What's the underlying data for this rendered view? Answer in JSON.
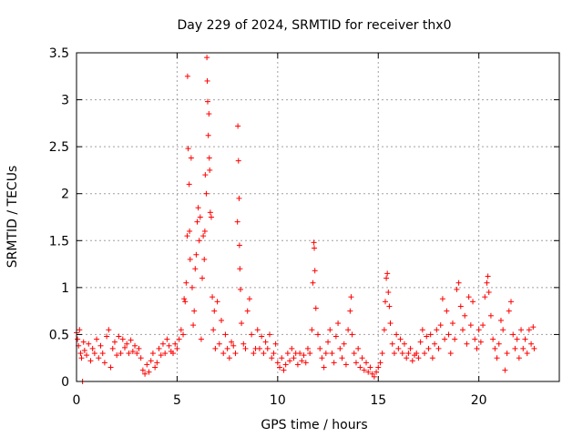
{
  "chart_data": {
    "type": "scatter",
    "title": "Day 229 of 2024, SRMTID for receiver thx0",
    "xlabel": "GPS time / hours",
    "ylabel": "SRMTID / TECUs",
    "xlim": [
      0,
      24
    ],
    "ylim": [
      0,
      3.5
    ],
    "grid": true,
    "marker": "plus",
    "marker_color": "#ff0000",
    "x_ticks": [
      {
        "value": 0,
        "label": "0"
      },
      {
        "value": 5,
        "label": "5"
      },
      {
        "value": 10,
        "label": "10"
      },
      {
        "value": 15,
        "label": "15"
      },
      {
        "value": 20,
        "label": "20"
      }
    ],
    "y_ticks": [
      {
        "value": 0,
        "label": "0"
      },
      {
        "value": 0.5,
        "label": "0.5"
      },
      {
        "value": 1,
        "label": "1"
      },
      {
        "value": 1.5,
        "label": "1.5"
      },
      {
        "value": 2,
        "label": "2"
      },
      {
        "value": 2.5,
        "label": "2.5"
      },
      {
        "value": 3,
        "label": "3"
      },
      {
        "value": 3.5,
        "label": "3.5"
      }
    ],
    "series": [
      {
        "name": "SRMTID thx0",
        "points": [
          [
            0.0,
            0.52
          ],
          [
            0.05,
            0.45
          ],
          [
            0.1,
            0.38
          ],
          [
            0.15,
            0.55
          ],
          [
            0.2,
            0.3
          ],
          [
            0.25,
            0.25
          ],
          [
            0.3,
            0.0
          ],
          [
            0.35,
            0.42
          ],
          [
            0.4,
            0.33
          ],
          [
            0.5,
            0.28
          ],
          [
            0.6,
            0.4
          ],
          [
            0.7,
            0.22
          ],
          [
            0.8,
            0.35
          ],
          [
            0.9,
            0.3
          ],
          [
            1.0,
            0.45
          ],
          [
            1.1,
            0.25
          ],
          [
            1.2,
            0.38
          ],
          [
            1.3,
            0.3
          ],
          [
            1.4,
            0.2
          ],
          [
            1.5,
            0.48
          ],
          [
            1.6,
            0.55
          ],
          [
            1.7,
            0.15
          ],
          [
            1.8,
            0.35
          ],
          [
            1.9,
            0.42
          ],
          [
            2.0,
            0.28
          ],
          [
            2.1,
            0.48
          ],
          [
            2.2,
            0.3
          ],
          [
            2.3,
            0.45
          ],
          [
            2.4,
            0.36
          ],
          [
            2.5,
            0.4
          ],
          [
            2.6,
            0.3
          ],
          [
            2.7,
            0.44
          ],
          [
            2.8,
            0.32
          ],
          [
            2.9,
            0.38
          ],
          [
            3.0,
            0.3
          ],
          [
            3.1,
            0.35
          ],
          [
            3.2,
            0.25
          ],
          [
            3.3,
            0.12
          ],
          [
            3.4,
            0.08
          ],
          [
            3.5,
            0.18
          ],
          [
            3.6,
            0.1
          ],
          [
            3.7,
            0.22
          ],
          [
            3.8,
            0.3
          ],
          [
            3.9,
            0.15
          ],
          [
            4.0,
            0.2
          ],
          [
            4.1,
            0.35
          ],
          [
            4.2,
            0.28
          ],
          [
            4.3,
            0.4
          ],
          [
            4.4,
            0.3
          ],
          [
            4.5,
            0.45
          ],
          [
            4.6,
            0.38
          ],
          [
            4.7,
            0.32
          ],
          [
            4.8,
            0.3
          ],
          [
            4.9,
            0.4
          ],
          [
            5.0,
            0.35
          ],
          [
            5.1,
            0.45
          ],
          [
            5.2,
            0.55
          ],
          [
            5.3,
            0.5
          ],
          [
            5.35,
            0.88
          ],
          [
            5.4,
            0.85
          ],
          [
            5.45,
            1.05
          ],
          [
            5.5,
            1.55
          ],
          [
            5.52,
            3.25
          ],
          [
            5.55,
            2.48
          ],
          [
            5.6,
            2.1
          ],
          [
            5.62,
            1.6
          ],
          [
            5.65,
            1.3
          ],
          [
            5.7,
            2.38
          ],
          [
            5.75,
            1.0
          ],
          [
            5.8,
            0.6
          ],
          [
            5.85,
            0.75
          ],
          [
            5.9,
            1.2
          ],
          [
            5.95,
            1.35
          ],
          [
            6.0,
            1.7
          ],
          [
            6.05,
            1.85
          ],
          [
            6.1,
            1.5
          ],
          [
            6.15,
            1.75
          ],
          [
            6.2,
            0.45
          ],
          [
            6.25,
            1.1
          ],
          [
            6.3,
            1.55
          ],
          [
            6.35,
            1.3
          ],
          [
            6.38,
            1.6
          ],
          [
            6.4,
            2.2
          ],
          [
            6.45,
            2.0
          ],
          [
            6.48,
            3.45
          ],
          [
            6.5,
            3.2
          ],
          [
            6.52,
            2.98
          ],
          [
            6.55,
            2.62
          ],
          [
            6.58,
            2.85
          ],
          [
            6.6,
            2.38
          ],
          [
            6.62,
            2.25
          ],
          [
            6.65,
            1.8
          ],
          [
            6.7,
            1.75
          ],
          [
            6.75,
            0.9
          ],
          [
            6.8,
            0.55
          ],
          [
            6.85,
            0.75
          ],
          [
            6.9,
            0.35
          ],
          [
            7.0,
            0.85
          ],
          [
            7.1,
            0.4
          ],
          [
            7.2,
            0.65
          ],
          [
            7.3,
            0.3
          ],
          [
            7.4,
            0.5
          ],
          [
            7.5,
            0.35
          ],
          [
            7.6,
            0.25
          ],
          [
            7.7,
            0.42
          ],
          [
            7.8,
            0.38
          ],
          [
            7.9,
            0.3
          ],
          [
            8.0,
            1.7
          ],
          [
            8.02,
            2.72
          ],
          [
            8.05,
            2.35
          ],
          [
            8.08,
            1.95
          ],
          [
            8.1,
            1.45
          ],
          [
            8.12,
            1.2
          ],
          [
            8.15,
            0.98
          ],
          [
            8.2,
            0.62
          ],
          [
            8.3,
            0.4
          ],
          [
            8.4,
            0.35
          ],
          [
            8.5,
            0.75
          ],
          [
            8.6,
            0.88
          ],
          [
            8.7,
            0.5
          ],
          [
            8.8,
            0.3
          ],
          [
            8.9,
            0.35
          ],
          [
            9.0,
            0.55
          ],
          [
            9.1,
            0.35
          ],
          [
            9.2,
            0.48
          ],
          [
            9.3,
            0.3
          ],
          [
            9.4,
            0.42
          ],
          [
            9.5,
            0.35
          ],
          [
            9.6,
            0.5
          ],
          [
            9.7,
            0.25
          ],
          [
            9.8,
            0.3
          ],
          [
            9.9,
            0.4
          ],
          [
            10.0,
            0.2
          ],
          [
            10.1,
            0.15
          ],
          [
            10.2,
            0.25
          ],
          [
            10.3,
            0.12
          ],
          [
            10.4,
            0.18
          ],
          [
            10.5,
            0.3
          ],
          [
            10.6,
            0.22
          ],
          [
            10.7,
            0.35
          ],
          [
            10.8,
            0.25
          ],
          [
            10.9,
            0.3
          ],
          [
            11.0,
            0.18
          ],
          [
            11.1,
            0.3
          ],
          [
            11.2,
            0.22
          ],
          [
            11.3,
            0.28
          ],
          [
            11.4,
            0.2
          ],
          [
            11.5,
            0.35
          ],
          [
            11.6,
            0.3
          ],
          [
            11.7,
            0.55
          ],
          [
            11.75,
            1.05
          ],
          [
            11.8,
            1.48
          ],
          [
            11.82,
            1.42
          ],
          [
            11.85,
            1.18
          ],
          [
            11.9,
            0.78
          ],
          [
            12.0,
            0.5
          ],
          [
            12.1,
            0.35
          ],
          [
            12.2,
            0.25
          ],
          [
            12.3,
            0.15
          ],
          [
            12.4,
            0.3
          ],
          [
            12.5,
            0.42
          ],
          [
            12.6,
            0.55
          ],
          [
            12.7,
            0.3
          ],
          [
            12.8,
            0.2
          ],
          [
            12.9,
            0.48
          ],
          [
            13.0,
            0.62
          ],
          [
            13.1,
            0.35
          ],
          [
            13.2,
            0.25
          ],
          [
            13.3,
            0.4
          ],
          [
            13.4,
            0.18
          ],
          [
            13.5,
            0.55
          ],
          [
            13.6,
            0.75
          ],
          [
            13.65,
            0.9
          ],
          [
            13.7,
            0.5
          ],
          [
            13.8,
            0.3
          ],
          [
            13.9,
            0.2
          ],
          [
            14.0,
            0.35
          ],
          [
            14.1,
            0.15
          ],
          [
            14.2,
            0.25
          ],
          [
            14.3,
            0.12
          ],
          [
            14.4,
            0.2
          ],
          [
            14.5,
            0.1
          ],
          [
            14.6,
            0.15
          ],
          [
            14.7,
            0.08
          ],
          [
            14.8,
            0.05
          ],
          [
            14.9,
            0.1
          ],
          [
            15.0,
            0.15
          ],
          [
            15.1,
            0.2
          ],
          [
            15.2,
            0.3
          ],
          [
            15.3,
            0.55
          ],
          [
            15.35,
            0.85
          ],
          [
            15.4,
            1.1
          ],
          [
            15.45,
            1.15
          ],
          [
            15.5,
            0.95
          ],
          [
            15.55,
            0.8
          ],
          [
            15.6,
            0.62
          ],
          [
            15.7,
            0.4
          ],
          [
            15.8,
            0.3
          ],
          [
            15.9,
            0.5
          ],
          [
            16.0,
            0.35
          ],
          [
            16.1,
            0.45
          ],
          [
            16.2,
            0.3
          ],
          [
            16.3,
            0.4
          ],
          [
            16.4,
            0.25
          ],
          [
            16.5,
            0.3
          ],
          [
            16.6,
            0.35
          ],
          [
            16.7,
            0.22
          ],
          [
            16.8,
            0.28
          ],
          [
            16.9,
            0.3
          ],
          [
            17.0,
            0.25
          ],
          [
            17.1,
            0.42
          ],
          [
            17.2,
            0.55
          ],
          [
            17.3,
            0.3
          ],
          [
            17.4,
            0.48
          ],
          [
            17.5,
            0.35
          ],
          [
            17.6,
            0.5
          ],
          [
            17.7,
            0.25
          ],
          [
            17.8,
            0.4
          ],
          [
            17.9,
            0.55
          ],
          [
            18.0,
            0.35
          ],
          [
            18.1,
            0.6
          ],
          [
            18.2,
            0.88
          ],
          [
            18.3,
            0.45
          ],
          [
            18.4,
            0.75
          ],
          [
            18.5,
            0.5
          ],
          [
            18.6,
            0.3
          ],
          [
            18.7,
            0.62
          ],
          [
            18.8,
            0.45
          ],
          [
            18.9,
            0.98
          ],
          [
            19.0,
            1.05
          ],
          [
            19.1,
            0.8
          ],
          [
            19.2,
            0.55
          ],
          [
            19.3,
            0.7
          ],
          [
            19.4,
            0.4
          ],
          [
            19.5,
            0.9
          ],
          [
            19.6,
            0.6
          ],
          [
            19.7,
            0.85
          ],
          [
            19.8,
            0.45
          ],
          [
            19.9,
            0.35
          ],
          [
            20.0,
            0.55
          ],
          [
            20.1,
            0.42
          ],
          [
            20.2,
            0.6
          ],
          [
            20.3,
            0.9
          ],
          [
            20.4,
            1.05
          ],
          [
            20.45,
            1.12
          ],
          [
            20.5,
            0.95
          ],
          [
            20.6,
            0.7
          ],
          [
            20.7,
            0.45
          ],
          [
            20.8,
            0.35
          ],
          [
            20.9,
            0.25
          ],
          [
            21.0,
            0.4
          ],
          [
            21.1,
            0.65
          ],
          [
            21.2,
            0.55
          ],
          [
            21.3,
            0.12
          ],
          [
            21.4,
            0.3
          ],
          [
            21.5,
            0.75
          ],
          [
            21.6,
            0.85
          ],
          [
            21.7,
            0.5
          ],
          [
            21.8,
            0.35
          ],
          [
            21.9,
            0.45
          ],
          [
            22.0,
            0.25
          ],
          [
            22.1,
            0.55
          ],
          [
            22.2,
            0.35
          ],
          [
            22.3,
            0.45
          ],
          [
            22.4,
            0.3
          ],
          [
            22.5,
            0.55
          ],
          [
            22.6,
            0.4
          ],
          [
            22.7,
            0.58
          ],
          [
            22.75,
            0.35
          ]
        ]
      }
    ]
  }
}
